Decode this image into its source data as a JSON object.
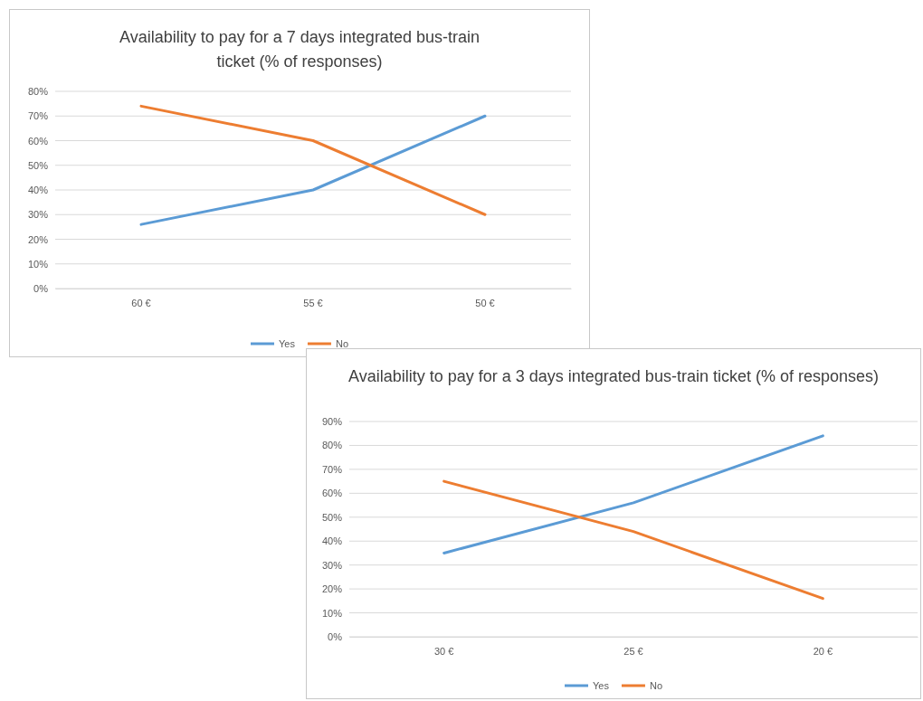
{
  "chart_data": [
    {
      "type": "line",
      "title": "Availability to pay for a 7 days integrated bus-train ticket (% of responses)",
      "categories": [
        "60 €",
        "55 €",
        "50 €"
      ],
      "series": [
        {
          "name": "Yes",
          "color": "#5b9bd5",
          "values": [
            26,
            40,
            70
          ]
        },
        {
          "name": "No",
          "color": "#ed7d31",
          "values": [
            74,
            60,
            30
          ]
        }
      ],
      "ylim": [
        0,
        80
      ],
      "yticks": [
        {
          "value": 0,
          "label": "0%"
        },
        {
          "value": 10,
          "label": "10%"
        },
        {
          "value": 20,
          "label": "20%"
        },
        {
          "value": 30,
          "label": "30%"
        },
        {
          "value": 40,
          "label": "40%"
        },
        {
          "value": 50,
          "label": "50%"
        },
        {
          "value": 60,
          "label": "60%"
        },
        {
          "value": 70,
          "label": "70%"
        },
        {
          "value": 80,
          "label": "80%"
        }
      ],
      "grid": "y",
      "legend": "bottom",
      "marker": "none",
      "line_style": "solid"
    },
    {
      "type": "line",
      "title": "Availability to pay for a 3 days integrated bus-train ticket (% of responses)",
      "categories": [
        "30 €",
        "25 €",
        "20 €"
      ],
      "series": [
        {
          "name": "Yes",
          "color": "#5b9bd5",
          "values": [
            35,
            56,
            84
          ]
        },
        {
          "name": "No",
          "color": "#ed7d31",
          "values": [
            65,
            44,
            16
          ]
        }
      ],
      "ylim": [
        0,
        90
      ],
      "yticks": [
        {
          "value": 0,
          "label": "0%"
        },
        {
          "value": 10,
          "label": "10%"
        },
        {
          "value": 20,
          "label": "20%"
        },
        {
          "value": 30,
          "label": "30%"
        },
        {
          "value": 40,
          "label": "40%"
        },
        {
          "value": 50,
          "label": "50%"
        },
        {
          "value": 60,
          "label": "60%"
        },
        {
          "value": 70,
          "label": "70%"
        },
        {
          "value": 80,
          "label": "80%"
        },
        {
          "value": 90,
          "label": "90%"
        }
      ],
      "grid": "y",
      "legend": "bottom",
      "marker": "none",
      "line_style": "solid"
    }
  ]
}
